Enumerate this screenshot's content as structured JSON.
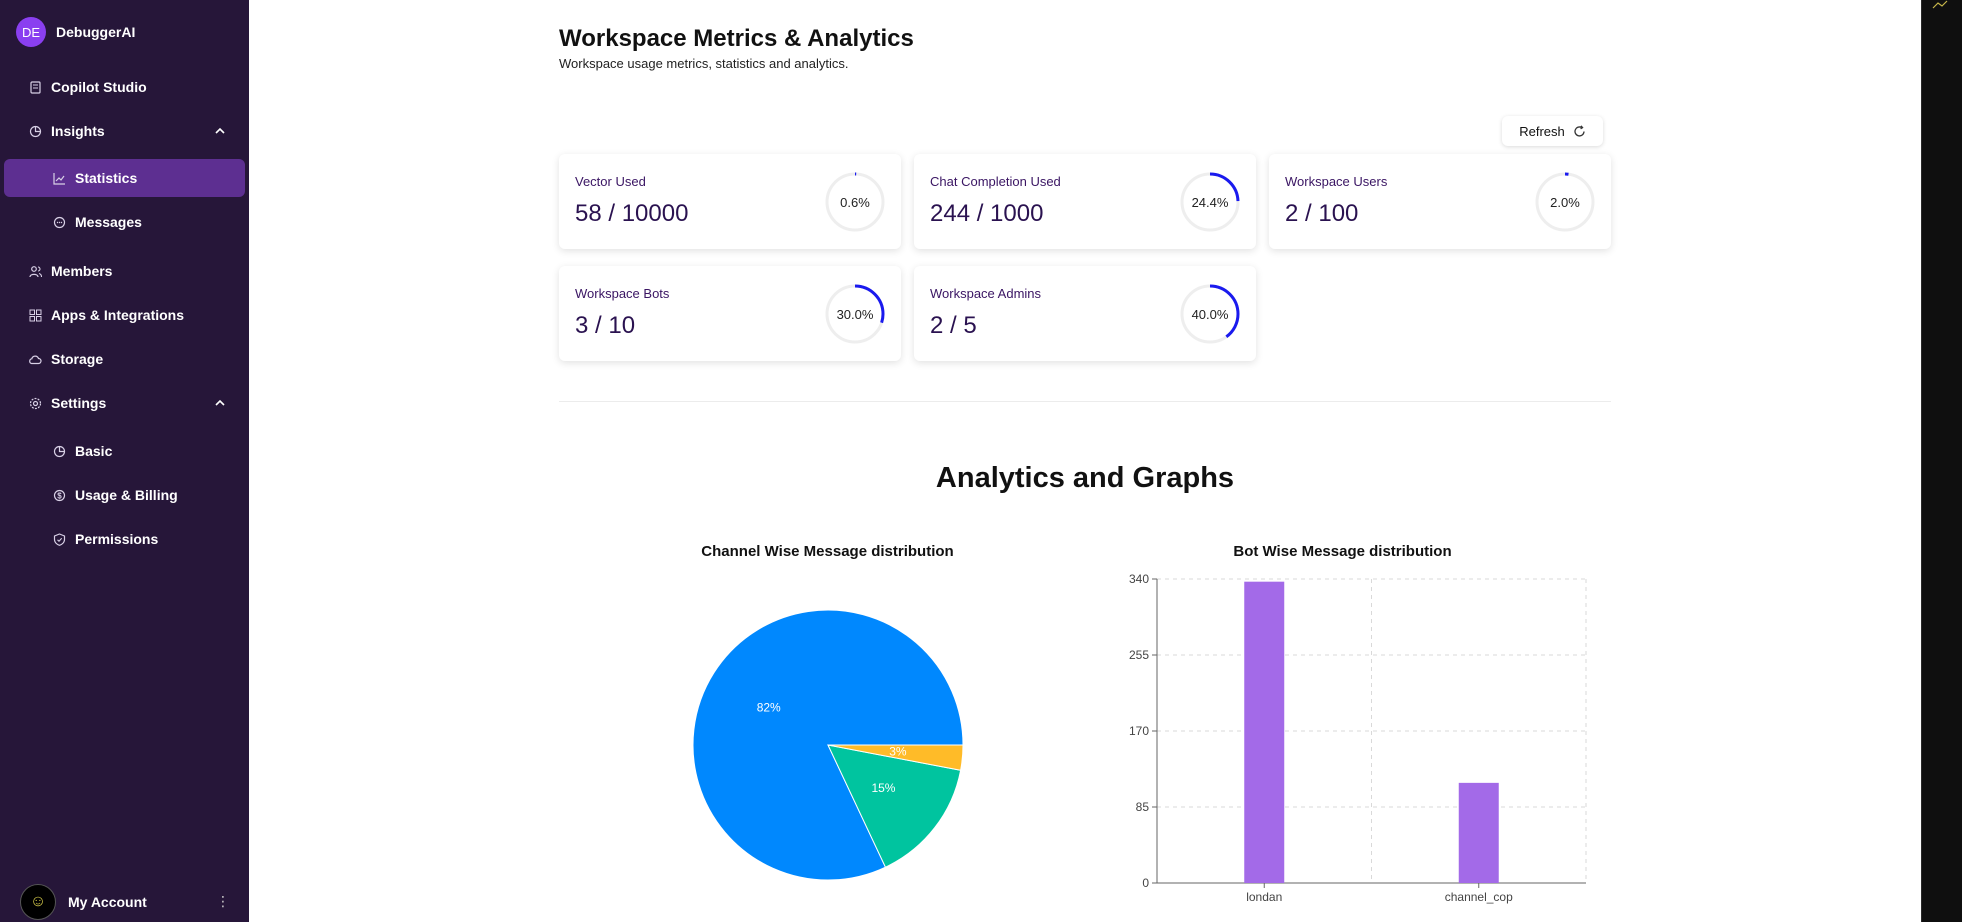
{
  "workspace": {
    "initials": "DE",
    "name": "DebuggerAI"
  },
  "sidebar": {
    "items": [
      {
        "label": "Copilot Studio"
      },
      {
        "label": "Insights"
      },
      {
        "label": "Statistics"
      },
      {
        "label": "Messages"
      },
      {
        "label": "Members"
      },
      {
        "label": "Apps & Integrations"
      },
      {
        "label": "Storage"
      },
      {
        "label": "Settings"
      },
      {
        "label": "Basic"
      },
      {
        "label": "Usage & Billing"
      },
      {
        "label": "Permissions"
      }
    ],
    "account_label": "My Account"
  },
  "header": {
    "title": "Workspace Metrics & Analytics",
    "subtitle": "Workspace usage metrics, statistics and analytics."
  },
  "refresh_label": "Refresh",
  "metrics": [
    {
      "label": "Vector Used",
      "value": "58 / 10000",
      "percent_text": "0.6%",
      "fraction": 0.006
    },
    {
      "label": "Chat Completion Used",
      "value": "244 / 1000",
      "percent_text": "24.4%",
      "fraction": 0.244
    },
    {
      "label": "Workspace Users",
      "value": "2 / 100",
      "percent_text": "2.0%",
      "fraction": 0.02
    },
    {
      "label": "Workspace Bots",
      "value": "3 / 10",
      "percent_text": "30.0%",
      "fraction": 0.3
    },
    {
      "label": "Workspace Admins",
      "value": "2 / 5",
      "percent_text": "40.0%",
      "fraction": 0.4
    }
  ],
  "colors": {
    "ring": "#1a1aee",
    "ring_track": "#eeeeee",
    "sidebar": "#261639",
    "active": "#5d2f91"
  },
  "analytics_title": "Analytics and Graphs",
  "chart_data": [
    {
      "type": "pie",
      "title": "Channel Wise Message distribution",
      "slices": [
        {
          "label": "82%",
          "value": 82,
          "color": "#0088fe"
        },
        {
          "label": "15%",
          "value": 15,
          "color": "#00c49f"
        },
        {
          "label": "3%",
          "value": 3,
          "color": "#ffbb28"
        }
      ]
    },
    {
      "type": "bar",
      "title": "Bot Wise Message distribution",
      "categories": [
        "londan",
        "channel_cop"
      ],
      "values": [
        337,
        112
      ],
      "yticks": [
        "0",
        "85",
        "170",
        "255",
        "340"
      ],
      "ylim": [
        0,
        340
      ],
      "grid": true,
      "color": "#a36ae8"
    }
  ]
}
